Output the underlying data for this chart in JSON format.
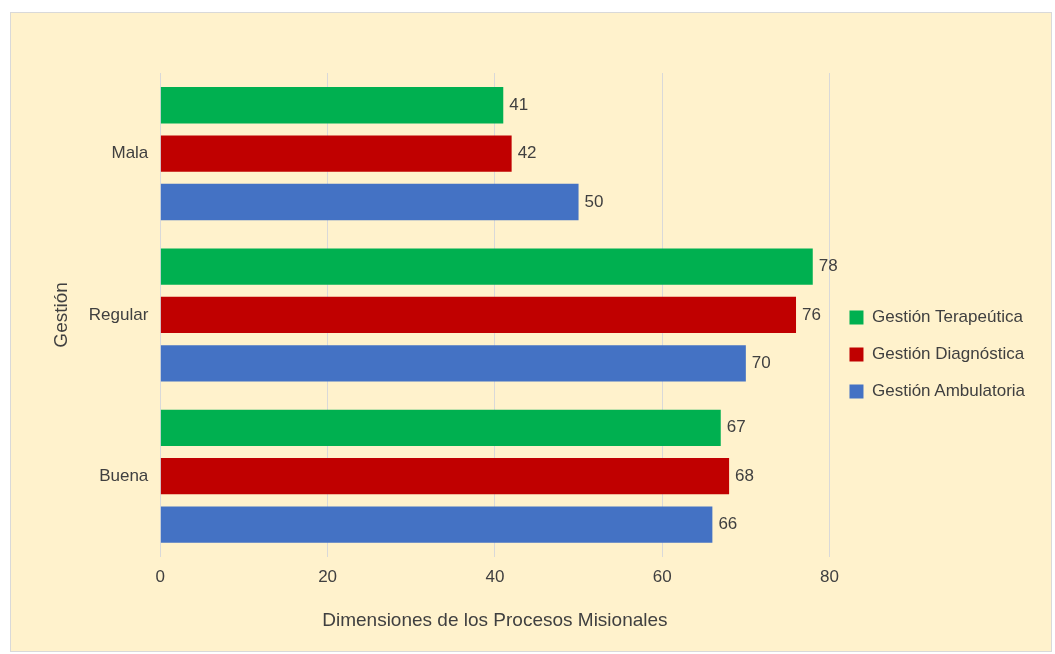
{
  "chart_data": {
    "type": "bar",
    "orientation": "horizontal",
    "xlabel": "Dimensiones de los Procesos Misionales",
    "ylabel": "Gestión",
    "categories": [
      "Mala",
      "Regular",
      "Buena"
    ],
    "series": [
      {
        "name": "Gestión Terapeútica",
        "color": "#00b050",
        "values": [
          41,
          78,
          67
        ]
      },
      {
        "name": "Gestión Diagnóstica",
        "color": "#c00000",
        "values": [
          42,
          76,
          68
        ]
      },
      {
        "name": "Gestión Ambulatoria",
        "color": "#4472c4",
        "values": [
          50,
          70,
          66
        ]
      }
    ],
    "xlim": [
      0,
      80
    ],
    "xticks": [
      0,
      20,
      40,
      60,
      80
    ],
    "grid": "x",
    "legend": "right",
    "data_labels": true
  }
}
